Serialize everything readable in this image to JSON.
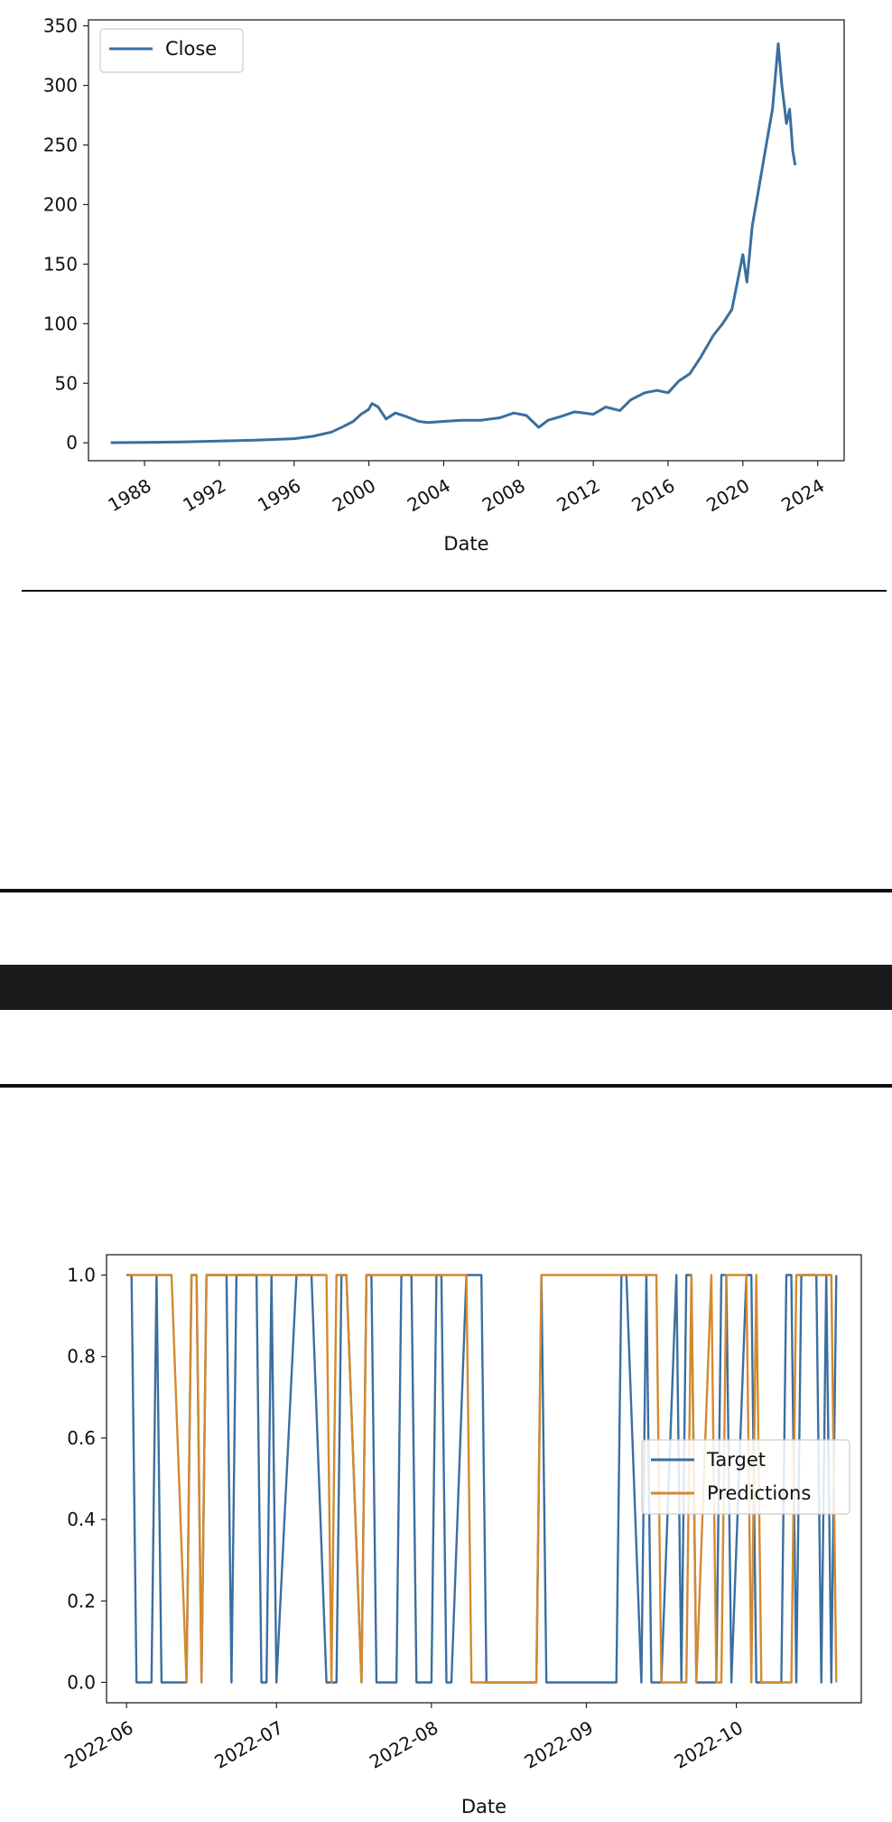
{
  "chart_data": [
    {
      "type": "line",
      "xlabel": "Date",
      "ylabel": "",
      "ylim": [
        -15,
        355
      ],
      "xlim": [
        "1985-01-01",
        "2025-06-01"
      ],
      "yticks": [
        0,
        50,
        100,
        150,
        200,
        250,
        300,
        350
      ],
      "xticks": [
        "1988",
        "1992",
        "1996",
        "2000",
        "2004",
        "2008",
        "2012",
        "2016",
        "2020",
        "2024"
      ],
      "legend_position": "upper-left",
      "series": [
        {
          "name": "Close",
          "color": "#3a6fa0",
          "x": [
            "1986-03-13",
            "1988-01-01",
            "1990-01-01",
            "1992-01-01",
            "1994-01-01",
            "1996-01-01",
            "1997-01-01",
            "1998-01-01",
            "1998-09-01",
            "1999-03-01",
            "1999-08-01",
            "1999-12-27",
            "2000-03-01",
            "2000-07-01",
            "2000-12-01",
            "2001-06-01",
            "2002-01-01",
            "2002-09-01",
            "2003-03-01",
            "2004-01-01",
            "2005-01-01",
            "2006-01-01",
            "2007-01-01",
            "2007-10-01",
            "2008-06-01",
            "2009-02-01",
            "2009-08-01",
            "2010-04-01",
            "2011-01-01",
            "2012-01-01",
            "2012-09-01",
            "2013-06-01",
            "2014-01-01",
            "2014-10-01",
            "2015-06-01",
            "2016-01-01",
            "2016-08-01",
            "2017-03-01",
            "2017-10-01",
            "2018-06-01",
            "2018-12-01",
            "2019-06-01",
            "2020-01-01",
            "2020-03-20",
            "2020-07-01",
            "2020-11-01",
            "2021-04-01",
            "2021-08-01",
            "2021-11-22",
            "2022-02-01",
            "2022-05-01",
            "2022-07-01",
            "2022-09-01",
            "2022-10-20"
          ],
          "values": [
            0.1,
            0.4,
            0.8,
            1.5,
            2.2,
            3.5,
            5.5,
            9,
            14,
            18,
            24,
            28,
            33,
            30,
            20,
            25,
            22,
            18,
            17,
            18,
            19,
            19,
            21,
            25,
            23,
            13,
            19,
            22,
            26,
            24,
            30,
            27,
            36,
            42,
            44,
            42,
            52,
            58,
            72,
            90,
            100,
            112,
            158,
            135,
            182,
            212,
            250,
            280,
            335,
            300,
            268,
            280,
            245,
            233
          ]
        }
      ]
    },
    {
      "type": "line",
      "xlabel": "Date",
      "ylabel": "",
      "ylim": [
        -0.05,
        1.05
      ],
      "xlim": [
        "2022-05-28",
        "2022-10-26"
      ],
      "yticks": [
        "0.0",
        "0.2",
        "0.4",
        "0.6",
        "0.8",
        "1.0"
      ],
      "xticks": [
        "2022-06",
        "2022-07",
        "2022-08",
        "2022-09",
        "2022-10"
      ],
      "legend_position": "center-right",
      "series": [
        {
          "name": "Target",
          "color": "#3a6fa0",
          "x": [
            "2022-06-01",
            "2022-06-02",
            "2022-06-03",
            "2022-06-06",
            "2022-06-07",
            "2022-06-08",
            "2022-06-09",
            "2022-06-10",
            "2022-06-13",
            "2022-06-14",
            "2022-06-15",
            "2022-06-16",
            "2022-06-17",
            "2022-06-21",
            "2022-06-22",
            "2022-06-23",
            "2022-06-24",
            "2022-06-27",
            "2022-06-28",
            "2022-06-29",
            "2022-06-30",
            "2022-07-01",
            "2022-07-05",
            "2022-07-06",
            "2022-07-07",
            "2022-07-08",
            "2022-07-11",
            "2022-07-12",
            "2022-07-13",
            "2022-07-14",
            "2022-07-15",
            "2022-07-18",
            "2022-07-19",
            "2022-07-20",
            "2022-07-21",
            "2022-07-22",
            "2022-07-25",
            "2022-07-26",
            "2022-07-27",
            "2022-07-28",
            "2022-07-29",
            "2022-08-01",
            "2022-08-02",
            "2022-08-03",
            "2022-08-04",
            "2022-08-05",
            "2022-08-08",
            "2022-08-09",
            "2022-08-10",
            "2022-08-11",
            "2022-08-12",
            "2022-08-15",
            "2022-08-16",
            "2022-08-17",
            "2022-08-18",
            "2022-08-19",
            "2022-08-22",
            "2022-08-23",
            "2022-08-24",
            "2022-08-25",
            "2022-08-26",
            "2022-08-29",
            "2022-08-30",
            "2022-08-31",
            "2022-09-01",
            "2022-09-02",
            "2022-09-06",
            "2022-09-07",
            "2022-09-08",
            "2022-09-09",
            "2022-09-12",
            "2022-09-13",
            "2022-09-14",
            "2022-09-15",
            "2022-09-16",
            "2022-09-19",
            "2022-09-20",
            "2022-09-21",
            "2022-09-22",
            "2022-09-23",
            "2022-09-26",
            "2022-09-27",
            "2022-09-28",
            "2022-09-29",
            "2022-09-30",
            "2022-10-03",
            "2022-10-04",
            "2022-10-05",
            "2022-10-06",
            "2022-10-07",
            "2022-10-10",
            "2022-10-11",
            "2022-10-12",
            "2022-10-13",
            "2022-10-14",
            "2022-10-17",
            "2022-10-18",
            "2022-10-19",
            "2022-10-20",
            "2022-10-21"
          ],
          "values": [
            1,
            1,
            0,
            0,
            1,
            0,
            0,
            0,
            0,
            1,
            1,
            0,
            1,
            1,
            0,
            1,
            1,
            1,
            0,
            0,
            1,
            0,
            1,
            1,
            1,
            1,
            0,
            0,
            0,
            1,
            1,
            0,
            1,
            1,
            0,
            0,
            0,
            1,
            1,
            1,
            0,
            0,
            1,
            1,
            0,
            0,
            1,
            1,
            1,
            1,
            0,
            0,
            0,
            0,
            0,
            0,
            0,
            1,
            0,
            0,
            0,
            0,
            0,
            0,
            0,
            0,
            0,
            0,
            1,
            1,
            0,
            1,
            0,
            0,
            0,
            1,
            0,
            1,
            1,
            0,
            0,
            0,
            1,
            1,
            0,
            1,
            1,
            0,
            0,
            0,
            0,
            1,
            1,
            0,
            1,
            1,
            0,
            1,
            0,
            1
          ]
        },
        {
          "name": "Predictions",
          "color": "#d48a2f",
          "x": [
            "2022-06-01",
            "2022-06-02",
            "2022-06-03",
            "2022-06-06",
            "2022-06-07",
            "2022-06-08",
            "2022-06-09",
            "2022-06-10",
            "2022-06-13",
            "2022-06-14",
            "2022-06-15",
            "2022-06-16",
            "2022-06-17",
            "2022-06-21",
            "2022-06-22",
            "2022-06-23",
            "2022-06-24",
            "2022-06-27",
            "2022-06-28",
            "2022-06-29",
            "2022-06-30",
            "2022-07-01",
            "2022-07-05",
            "2022-07-06",
            "2022-07-07",
            "2022-07-08",
            "2022-07-11",
            "2022-07-12",
            "2022-07-13",
            "2022-07-14",
            "2022-07-15",
            "2022-07-18",
            "2022-07-19",
            "2022-07-20",
            "2022-07-21",
            "2022-07-22",
            "2022-07-25",
            "2022-07-26",
            "2022-07-27",
            "2022-07-28",
            "2022-07-29",
            "2022-08-01",
            "2022-08-02",
            "2022-08-03",
            "2022-08-04",
            "2022-08-05",
            "2022-08-08",
            "2022-08-09",
            "2022-08-10",
            "2022-08-11",
            "2022-08-12",
            "2022-08-15",
            "2022-08-16",
            "2022-08-17",
            "2022-08-18",
            "2022-08-19",
            "2022-08-22",
            "2022-08-23",
            "2022-08-24",
            "2022-08-25",
            "2022-08-26",
            "2022-08-29",
            "2022-08-30",
            "2022-08-31",
            "2022-09-01",
            "2022-09-02",
            "2022-09-06",
            "2022-09-07",
            "2022-09-08",
            "2022-09-09",
            "2022-09-12",
            "2022-09-13",
            "2022-09-14",
            "2022-09-15",
            "2022-09-16",
            "2022-09-19",
            "2022-09-20",
            "2022-09-21",
            "2022-09-22",
            "2022-09-23",
            "2022-09-26",
            "2022-09-27",
            "2022-09-28",
            "2022-09-29",
            "2022-09-30",
            "2022-10-03",
            "2022-10-04",
            "2022-10-05",
            "2022-10-06",
            "2022-10-07",
            "2022-10-10",
            "2022-10-11",
            "2022-10-12",
            "2022-10-13",
            "2022-10-14",
            "2022-10-17",
            "2022-10-18",
            "2022-10-19",
            "2022-10-20",
            "2022-10-21"
          ],
          "values": [
            1,
            1,
            1,
            1,
            1,
            1,
            1,
            1,
            0,
            1,
            1,
            0,
            1,
            1,
            1,
            1,
            1,
            1,
            1,
            1,
            1,
            1,
            1,
            1,
            1,
            1,
            1,
            0,
            1,
            1,
            1,
            0,
            1,
            1,
            1,
            1,
            1,
            1,
            1,
            1,
            1,
            1,
            1,
            1,
            1,
            1,
            1,
            0,
            0,
            0,
            0,
            0,
            0,
            0,
            0,
            0,
            0,
            1,
            1,
            1,
            1,
            1,
            1,
            1,
            1,
            1,
            1,
            1,
            1,
            1,
            1,
            1,
            1,
            1,
            0,
            0,
            0,
            0,
            1,
            0,
            1,
            0,
            0,
            1,
            1,
            1,
            0,
            1,
            0,
            0,
            0,
            0,
            0,
            1,
            1,
            1,
            1,
            1,
            1,
            0
          ]
        }
      ]
    }
  ]
}
